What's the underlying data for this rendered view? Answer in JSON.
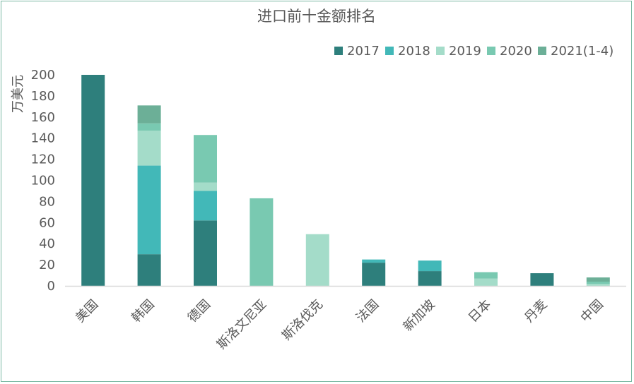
{
  "chart_data": {
    "type": "bar",
    "stacked": true,
    "title": "进口前十金额排名",
    "ylabel": "万美元",
    "xlabel": "",
    "ylim": [
      0,
      200
    ],
    "yticks": [
      0,
      20,
      40,
      60,
      80,
      100,
      120,
      140,
      160,
      180,
      200
    ],
    "grid": false,
    "legend_position": "top-right",
    "categories": [
      "美国",
      "韩国",
      "德国",
      "斯洛文尼亚",
      "斯洛伐克",
      "法国",
      "新加坡",
      "日本",
      "丹麦",
      "中国"
    ],
    "series": [
      {
        "name": "2017",
        "color": "#2e7f7c",
        "values": [
          200,
          30,
          62,
          0,
          0,
          22,
          14,
          0,
          12,
          0
        ]
      },
      {
        "name": "2018",
        "color": "#42b8b8",
        "values": [
          0,
          84,
          28,
          0,
          0,
          3,
          10,
          0,
          0,
          0
        ]
      },
      {
        "name": "2019",
        "color": "#a4dcc9",
        "values": [
          0,
          33,
          8,
          0,
          49,
          0,
          0,
          7,
          0,
          2
        ]
      },
      {
        "name": "2020",
        "color": "#79c9b1",
        "values": [
          0,
          7,
          45,
          83,
          0,
          0,
          0,
          6,
          0,
          2
        ]
      },
      {
        "name": "2021(1-4)",
        "color": "#6caf97",
        "values": [
          0,
          17,
          0,
          0,
          0,
          0,
          0,
          0,
          0,
          4
        ]
      }
    ]
  }
}
